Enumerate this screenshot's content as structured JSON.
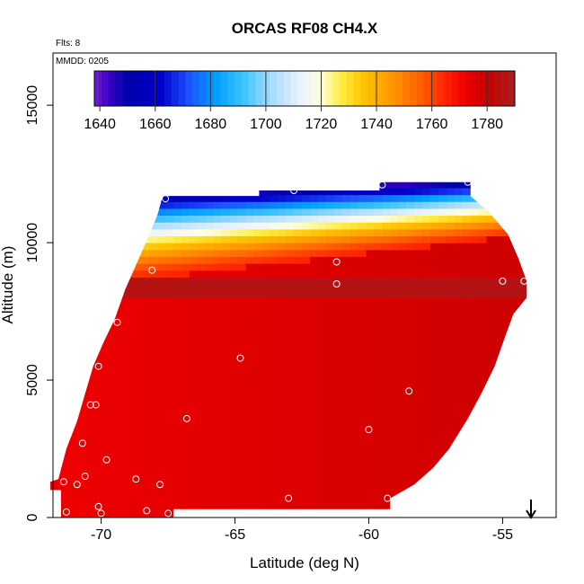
{
  "chart_data": {
    "type": "heatmap",
    "title": "ORCAS RF08 CH4.X",
    "flights_label": "Flts: 8",
    "date_label": "MMDD: 0205",
    "xlabel": "Latitude (deg N)",
    "ylabel": "Altitude (m)",
    "xlim": [
      -71.8,
      -53.0
    ],
    "ylim": [
      0,
      16900
    ],
    "x_ticks": [
      -70,
      -65,
      -60,
      -55
    ],
    "x_tick_labels": [
      "-70",
      "-65",
      "-60",
      "-55"
    ],
    "y_ticks": [
      0,
      5000,
      10000,
      15000
    ],
    "y_tick_labels": [
      "0",
      "5000",
      "10000",
      "15000"
    ],
    "colorbar": {
      "min": 1638,
      "max": 1790,
      "ticks": [
        1640,
        1660,
        1680,
        1700,
        1720,
        1740,
        1760,
        1780
      ],
      "tick_labels": [
        "1640",
        "1660",
        "1680",
        "1700",
        "1720",
        "1740",
        "1760",
        "1780"
      ],
      "stops": [
        [
          1638,
          "#7a1fe0"
        ],
        [
          1643,
          "#3a00c8"
        ],
        [
          1650,
          "#0000aa"
        ],
        [
          1662,
          "#0000cc"
        ],
        [
          1672,
          "#1e50ff"
        ],
        [
          1682,
          "#00a0ff"
        ],
        [
          1692,
          "#3cc4ff"
        ],
        [
          1702,
          "#a8dcff"
        ],
        [
          1712,
          "#e6f2ff"
        ],
        [
          1720,
          "#ffffe0"
        ],
        [
          1727,
          "#ffee44"
        ],
        [
          1735,
          "#ffc400"
        ],
        [
          1745,
          "#ff9900"
        ],
        [
          1755,
          "#ff6600"
        ],
        [
          1765,
          "#ff2200"
        ],
        [
          1772,
          "#ee0000"
        ],
        [
          1780,
          "#c80000"
        ],
        [
          1790,
          "#a82020"
        ]
      ]
    },
    "domain_polygon": [
      [
        -71.5,
        0
      ],
      [
        -67.3,
        0
      ],
      [
        -67.3,
        300
      ],
      [
        -59.2,
        300
      ],
      [
        -59.2,
        700
      ],
      [
        -58.3,
        1200
      ],
      [
        -57.6,
        1800
      ],
      [
        -57.0,
        2500
      ],
      [
        -56.3,
        3600
      ],
      [
        -55.8,
        4500
      ],
      [
        -55.3,
        5500
      ],
      [
        -54.9,
        6600
      ],
      [
        -54.6,
        7400
      ],
      [
        -54.1,
        8000
      ],
      [
        -54.1,
        8600
      ],
      [
        -54.4,
        9400
      ],
      [
        -54.8,
        10300
      ],
      [
        -55.5,
        11100
      ],
      [
        -56.2,
        11700
      ],
      [
        -56.2,
        12200
      ],
      [
        -59.6,
        12200
      ],
      [
        -59.6,
        11900
      ],
      [
        -64.1,
        11900
      ],
      [
        -64.1,
        11700
      ],
      [
        -67.7,
        11700
      ],
      [
        -67.9,
        11000
      ],
      [
        -68.2,
        10300
      ],
      [
        -68.6,
        9400
      ],
      [
        -69.1,
        8300
      ],
      [
        -69.5,
        7200
      ],
      [
        -69.9,
        6400
      ],
      [
        -70.3,
        5500
      ],
      [
        -70.6,
        4500
      ],
      [
        -70.9,
        3500
      ],
      [
        -71.3,
        2500
      ],
      [
        -71.6,
        1400
      ],
      [
        -71.9,
        1300
      ],
      [
        -71.9,
        1000
      ],
      [
        -71.5,
        1000
      ]
    ],
    "field_rules": {
      "lower_base_value": 1772,
      "gradient_north_value": 1779,
      "gradient_north_lat": -54,
      "gradient_south_lat": -72,
      "dark_band_value": 1786,
      "dark_band_alt": [
        8000,
        8700
      ],
      "transition_bottom_alt_at_south": 8300,
      "transition_bottom_alt_at_north": 10300,
      "transition_top_alt_at_south": 11600,
      "transition_top_alt_at_north": 12300,
      "transition_value_bottom": 1765,
      "transition_value_top": 1645
    },
    "samples": [
      [
        -71.4,
        1300
      ],
      [
        -71.3,
        200
      ],
      [
        -70.9,
        1200
      ],
      [
        -70.7,
        2700
      ],
      [
        -70.6,
        1500
      ],
      [
        -70.4,
        4100
      ],
      [
        -70.2,
        4100
      ],
      [
        -70.1,
        5500
      ],
      [
        -70.1,
        400
      ],
      [
        -70.0,
        150
      ],
      [
        -69.8,
        2100
      ],
      [
        -69.4,
        7100
      ],
      [
        -68.7,
        1400
      ],
      [
        -68.3,
        250
      ],
      [
        -68.1,
        9000
      ],
      [
        -67.8,
        1200
      ],
      [
        -67.6,
        11600
      ],
      [
        -67.5,
        150
      ],
      [
        -66.8,
        3600
      ],
      [
        -64.8,
        5800
      ],
      [
        -63.0,
        700
      ],
      [
        -62.8,
        11900
      ],
      [
        -61.2,
        9300
      ],
      [
        -61.2,
        8500
      ],
      [
        -60.0,
        3200
      ],
      [
        -59.5,
        12100
      ],
      [
        -59.3,
        700
      ],
      [
        -58.5,
        4600
      ],
      [
        -57.0,
        2200
      ],
      [
        -56.3,
        12200
      ],
      [
        -55.0,
        8600
      ],
      [
        -54.2,
        8600
      ]
    ]
  }
}
